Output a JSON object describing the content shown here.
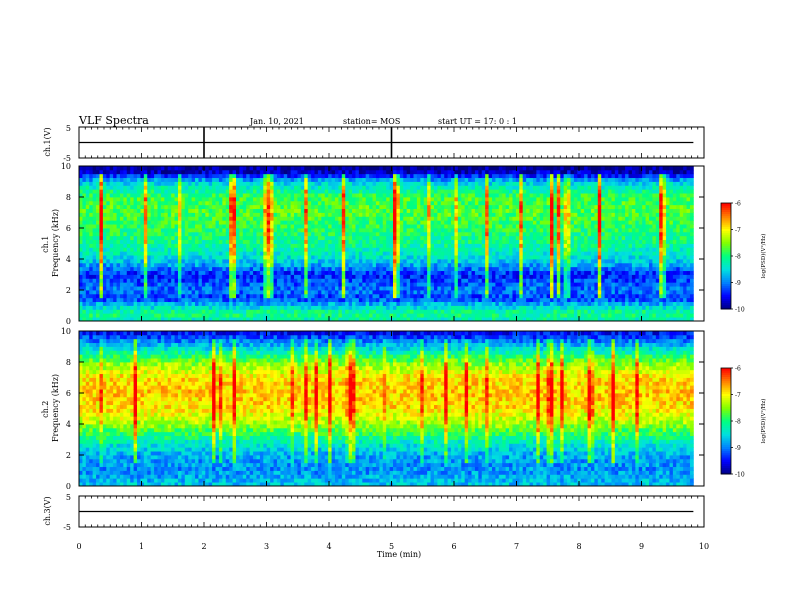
{
  "header": {
    "title": "VLF Spectra",
    "date": "Jan. 10, 2021",
    "station": "station= MOS",
    "start_time": "start UT = 17: 0 : 1"
  },
  "colors": {
    "colormap": [
      "#00007f",
      "#0000ff",
      "#0080ff",
      "#00e0e0",
      "#00ff80",
      "#80ff00",
      "#ffff00",
      "#ff8000",
      "#ff0000"
    ],
    "trace": "#000000"
  },
  "chart_data": [
    {
      "type": "line",
      "panel": "ch1-waveform",
      "ylabel": "ch.1(V)",
      "ylim": [
        -5,
        5
      ],
      "yticks": [
        "5",
        "-5"
      ],
      "xlim": [
        0,
        10
      ],
      "trace_level_v": 0,
      "spikes_at_min": [
        2.0,
        5.0
      ]
    },
    {
      "type": "heatmap",
      "panel": "ch1-spectrogram",
      "ylabel": "ch.1\nFrequency (kHz)",
      "ylim": [
        0,
        10
      ],
      "yticks": [
        "0",
        "2",
        "4",
        "6",
        "8",
        "10"
      ],
      "xlim": [
        0,
        10
      ],
      "data_end_min": 9.83,
      "colorbar": {
        "label": "log(PSD)(V²/Hz)",
        "range": [
          -10,
          -6
        ],
        "ticks": [
          "-6",
          "-7",
          "-8",
          "-9",
          "-10"
        ]
      },
      "intensity_profile_log_psd": [
        {
          "freq_khz": 0.0,
          "value": -8.3
        },
        {
          "freq_khz": 0.5,
          "value": -8.0
        },
        {
          "freq_khz": 1.0,
          "value": -8.6
        },
        {
          "freq_khz": 1.5,
          "value": -9.3
        },
        {
          "freq_khz": 2.0,
          "value": -9.0
        },
        {
          "freq_khz": 3.0,
          "value": -9.4
        },
        {
          "freq_khz": 4.0,
          "value": -8.5
        },
        {
          "freq_khz": 5.0,
          "value": -8.1
        },
        {
          "freq_khz": 6.0,
          "value": -7.9
        },
        {
          "freq_khz": 7.0,
          "value": -7.7
        },
        {
          "freq_khz": 8.0,
          "value": -7.8
        },
        {
          "freq_khz": 9.0,
          "value": -8.6
        },
        {
          "freq_khz": 9.5,
          "value": -9.6
        },
        {
          "freq_khz": 10.0,
          "value": -10.0
        }
      ]
    },
    {
      "type": "heatmap",
      "panel": "ch2-spectrogram",
      "ylabel": "ch.2\nFrequency (kHz)",
      "ylim": [
        0,
        10
      ],
      "yticks": [
        "0",
        "2",
        "4",
        "6",
        "8",
        "10"
      ],
      "xlim": [
        0,
        10
      ],
      "data_end_min": 9.83,
      "colorbar": {
        "label": "log(PSD)(V²/Hz)",
        "range": [
          -10,
          -6
        ],
        "ticks": [
          "-6",
          "-7",
          "-8",
          "-9",
          "-10"
        ]
      },
      "intensity_profile_log_psd": [
        {
          "freq_khz": 0.0,
          "value": -8.6
        },
        {
          "freq_khz": 1.0,
          "value": -8.9
        },
        {
          "freq_khz": 2.0,
          "value": -8.8
        },
        {
          "freq_khz": 3.0,
          "value": -8.2
        },
        {
          "freq_khz": 4.0,
          "value": -7.4
        },
        {
          "freq_khz": 5.0,
          "value": -6.9
        },
        {
          "freq_khz": 6.0,
          "value": -6.8
        },
        {
          "freq_khz": 7.0,
          "value": -6.9
        },
        {
          "freq_khz": 8.0,
          "value": -7.5
        },
        {
          "freq_khz": 9.0,
          "value": -8.6
        },
        {
          "freq_khz": 10.0,
          "value": -9.6
        }
      ]
    },
    {
      "type": "line",
      "panel": "ch3-waveform",
      "ylabel": "ch.3(V)",
      "ylim": [
        -5,
        5
      ],
      "yticks": [
        "5",
        "-5"
      ],
      "xlim": [
        0,
        10
      ],
      "trace_level_v": 0
    }
  ],
  "x_axis": {
    "label": "Time (min)",
    "ticks": [
      "0",
      "1",
      "2",
      "3",
      "4",
      "5",
      "6",
      "7",
      "8",
      "9",
      "10"
    ]
  }
}
